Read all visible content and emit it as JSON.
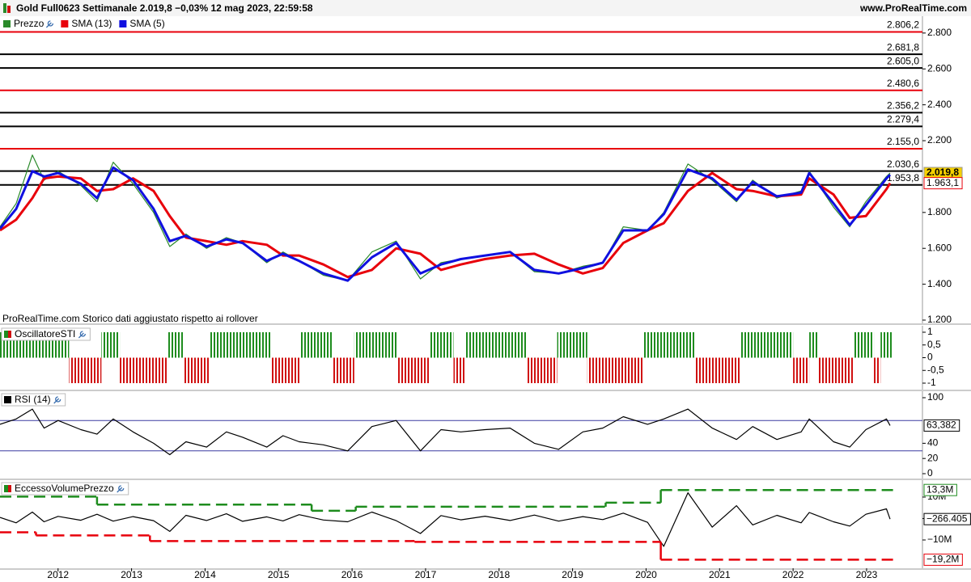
{
  "header": {
    "title": "Gold Full0623 Settimanale 2.019,8 −0,03% 12 mag 2023, 22:59:58",
    "site": "www.ProRealTime.com"
  },
  "chart_data": [
    {
      "type": "line",
      "xlim": [
        2011.21,
        2023.76
      ],
      "ylim": [
        1182,
        2894
      ],
      "yticks": [
        {
          "value": 2800,
          "label": "2.800"
        },
        {
          "value": 2600,
          "label": "2.600"
        },
        {
          "value": 2400,
          "label": "2.400"
        },
        {
          "value": 2200,
          "label": "2.200"
        },
        {
          "value": 1800,
          "label": "1.800"
        },
        {
          "value": 1600,
          "label": "1.600"
        },
        {
          "value": 1400,
          "label": "1.400"
        },
        {
          "value": 1200,
          "label": "1.200"
        }
      ],
      "levels": [
        {
          "value": 2806.2,
          "label": "2.806,2",
          "color": "#e8000b"
        },
        {
          "value": 2681.8,
          "label": "2.681,8",
          "color": "#000000"
        },
        {
          "value": 2605.0,
          "label": "2.605,0",
          "color": "#000000"
        },
        {
          "value": 2480.6,
          "label": "2.480,6",
          "color": "#e8000b"
        },
        {
          "value": 2356.2,
          "label": "2.356,2",
          "color": "#000000"
        },
        {
          "value": 2279.4,
          "label": "2.279,4",
          "color": "#000000"
        },
        {
          "value": 2155.0,
          "label": "2.155,0",
          "color": "#e8000b"
        },
        {
          "value": 2030.6,
          "label": "2.030,6",
          "color": "#000000"
        },
        {
          "value": 1953.8,
          "label": "1.953,8",
          "color": "#000000"
        }
      ],
      "x": [
        2011.21,
        2011.43,
        2011.65,
        2011.81,
        2012.0,
        2012.31,
        2012.53,
        2012.75,
        2013.02,
        2013.3,
        2013.52,
        2013.74,
        2014.02,
        2014.29,
        2014.51,
        2014.84,
        2015.06,
        2015.28,
        2015.61,
        2015.94,
        2016.27,
        2016.6,
        2016.93,
        2017.21,
        2017.48,
        2017.81,
        2018.15,
        2018.48,
        2018.81,
        2019.14,
        2019.41,
        2019.69,
        2020.02,
        2020.24,
        2020.57,
        2020.9,
        2021.23,
        2021.45,
        2021.78,
        2022.11,
        2022.22,
        2022.55,
        2022.77,
        2022.99,
        2023.27,
        2023.32
      ],
      "series": [
        {
          "name": "Prezzo",
          "color": "#2a8a2a",
          "badge_color": "#f5d000",
          "last_label": "2.019,8",
          "values": [
            1720,
            1850,
            2120,
            1980,
            2030,
            1950,
            1860,
            2080,
            1960,
            1800,
            1610,
            1680,
            1600,
            1660,
            1630,
            1520,
            1580,
            1530,
            1450,
            1420,
            1580,
            1640,
            1430,
            1520,
            1540,
            1560,
            1580,
            1470,
            1460,
            1500,
            1520,
            1720,
            1700,
            1800,
            2070,
            1980,
            1860,
            1980,
            1880,
            1920,
            2030,
            1830,
            1720,
            1860,
            2000,
            2019.8
          ]
        },
        {
          "name": "SMA (13)",
          "color": "#e8000b",
          "last_label": "1.963,1",
          "values": [
            1700,
            1760,
            1880,
            1990,
            2000,
            1990,
            1920,
            1930,
            1990,
            1920,
            1780,
            1660,
            1640,
            1620,
            1640,
            1620,
            1560,
            1560,
            1510,
            1440,
            1480,
            1600,
            1570,
            1480,
            1510,
            1540,
            1560,
            1570,
            1510,
            1460,
            1490,
            1630,
            1700,
            1740,
            1920,
            2020,
            1930,
            1920,
            1890,
            1900,
            1990,
            1900,
            1770,
            1780,
            1930,
            1963.1
          ]
        },
        {
          "name": "SMA (5)",
          "color": "#1010e0",
          "values": [
            1710,
            1820,
            2030,
            2000,
            2020,
            1960,
            1880,
            2050,
            1980,
            1820,
            1640,
            1670,
            1610,
            1650,
            1630,
            1530,
            1570,
            1530,
            1460,
            1420,
            1550,
            1630,
            1460,
            1510,
            1540,
            1560,
            1580,
            1480,
            1460,
            1490,
            1520,
            1700,
            1700,
            1790,
            2040,
            1990,
            1870,
            1970,
            1890,
            1910,
            2020,
            1850,
            1730,
            1840,
            1990,
            2010
          ]
        }
      ],
      "annotation": "ProRealTime.com  Storico dati aggiustato rispetto ai rollover"
    },
    {
      "type": "histogram",
      "title": "OscillatoreSTI",
      "xlim": [
        2011.21,
        2023.76
      ],
      "ylim": [
        -1.254,
        1.254
      ],
      "yticks": [
        1,
        {
          "value": 0.5,
          "label": "0,5"
        },
        0,
        {
          "value": -0.5,
          "label": "-0,5"
        },
        -1
      ],
      "color_up": "#1e8c1e",
      "color_down": "#d01010",
      "bins": [
        2011.21,
        2012.15,
        2012.59,
        2012.84,
        2013.5,
        2013.72,
        2014.07,
        2014.9,
        2015.29,
        2015.73,
        2016.03,
        2016.61,
        2017.05,
        2017.38,
        2017.54,
        2018.37,
        2018.79,
        2019.2,
        2019.97,
        2020.66,
        2021.29,
        2022.0,
        2022.22,
        2022.33,
        2022.83,
        2023.1,
        2023.19,
        2023.36
      ],
      "values": [
        1,
        -1,
        1,
        -1,
        1,
        -1,
        1,
        -1,
        1,
        -1,
        1,
        -1,
        1,
        -1,
        1,
        -1,
        1,
        -1,
        1,
        -1,
        1,
        -1,
        1,
        -1,
        1,
        -1,
        1
      ]
    },
    {
      "type": "line",
      "title": "RSI (14)",
      "xlim": [
        2011.21,
        2023.76
      ],
      "ylim": [
        -6.4,
        108.5
      ],
      "yticks": [
        100,
        40,
        20,
        0
      ],
      "levels": [
        70,
        30
      ],
      "x": [
        2011.21,
        2011.43,
        2011.65,
        2011.81,
        2012.0,
        2012.31,
        2012.53,
        2012.75,
        2013.02,
        2013.3,
        2013.52,
        2013.74,
        2014.02,
        2014.29,
        2014.51,
        2014.84,
        2015.06,
        2015.28,
        2015.61,
        2015.94,
        2016.27,
        2016.6,
        2016.93,
        2017.21,
        2017.48,
        2017.81,
        2018.15,
        2018.48,
        2018.81,
        2019.14,
        2019.41,
        2019.69,
        2020.02,
        2020.24,
        2020.57,
        2020.9,
        2021.23,
        2021.45,
        2021.78,
        2022.11,
        2022.22,
        2022.55,
        2022.77,
        2022.99,
        2023.27,
        2023.32
      ],
      "series": [
        {
          "color": "#000000",
          "last_label": "63,382",
          "values": [
            65,
            72,
            85,
            60,
            70,
            58,
            52,
            72,
            55,
            40,
            25,
            42,
            35,
            55,
            48,
            35,
            50,
            42,
            38,
            30,
            62,
            70,
            30,
            58,
            55,
            58,
            60,
            40,
            32,
            55,
            60,
            75,
            65,
            72,
            85,
            60,
            45,
            62,
            45,
            55,
            72,
            42,
            35,
            58,
            72,
            63.382
          ]
        }
      ]
    },
    {
      "type": "line",
      "title": "EccessoVolumePrezzo",
      "xlim": [
        2011.21,
        2023.76
      ],
      "ylim": [
        -23200000,
        17900000
      ],
      "yticks": [
        {
          "value": 10000000,
          "label": "10M"
        },
        0,
        {
          "value": -10000000,
          "label": "−10M"
        }
      ],
      "x": [
        2011.21,
        2011.43,
        2011.65,
        2011.81,
        2012.0,
        2012.31,
        2012.53,
        2012.75,
        2013.02,
        2013.3,
        2013.52,
        2013.74,
        2014.02,
        2014.29,
        2014.51,
        2014.84,
        2015.06,
        2015.28,
        2015.61,
        2015.94,
        2016.27,
        2016.6,
        2016.93,
        2017.21,
        2017.48,
        2017.81,
        2018.15,
        2018.48,
        2018.81,
        2019.14,
        2019.41,
        2019.69,
        2020.02,
        2020.24,
        2020.57,
        2020.9,
        2021.23,
        2021.45,
        2021.78,
        2022.11,
        2022.22,
        2022.55,
        2022.77,
        2022.99,
        2023.27,
        2023.32
      ],
      "series": [
        {
          "color": "#000000",
          "last_label": "−266.405",
          "values": [
            500000,
            -2000000,
            3000000,
            -1500000,
            1000000,
            -800000,
            2000000,
            -1200000,
            900000,
            -1000000,
            -6000000,
            1500000,
            -900000,
            2200000,
            -1300000,
            800000,
            -1100000,
            1800000,
            -700000,
            -1500000,
            3000000,
            -1000000,
            -7000000,
            1400000,
            -600000,
            1100000,
            -900000,
            1600000,
            -1200000,
            900000,
            -500000,
            2500000,
            -1800000,
            -13000000,
            12000000,
            -4000000,
            6000000,
            -3000000,
            1500000,
            -2000000,
            2800000,
            -1500000,
            -3500000,
            2000000,
            4500000,
            -266405
          ]
        },
        {
          "color": "#1e8c1e",
          "step": true,
          "dashed": true,
          "last_label": "13,3M",
          "x": [
            2011.21,
            2012.53,
            2015.45,
            2016.05,
            2019.45,
            2020.2,
            2023.36
          ],
          "values": [
            10200000,
            6500000,
            3600000,
            5500000,
            7400000,
            13300000,
            13300000
          ]
        },
        {
          "color": "#e8000b",
          "step": true,
          "dashed": true,
          "last_label": "−19,2M",
          "x": [
            2011.21,
            2011.7,
            2013.25,
            2016.85,
            2020.2,
            2023.36
          ],
          "values": [
            -6400000,
            -7900000,
            -10500000,
            -10900000,
            -19200000,
            -19200000
          ]
        }
      ],
      "xticks": [
        2012,
        2013,
        2014,
        2015,
        2016,
        2017,
        2018,
        2019,
        2020,
        2021,
        2022,
        2023
      ]
    }
  ]
}
